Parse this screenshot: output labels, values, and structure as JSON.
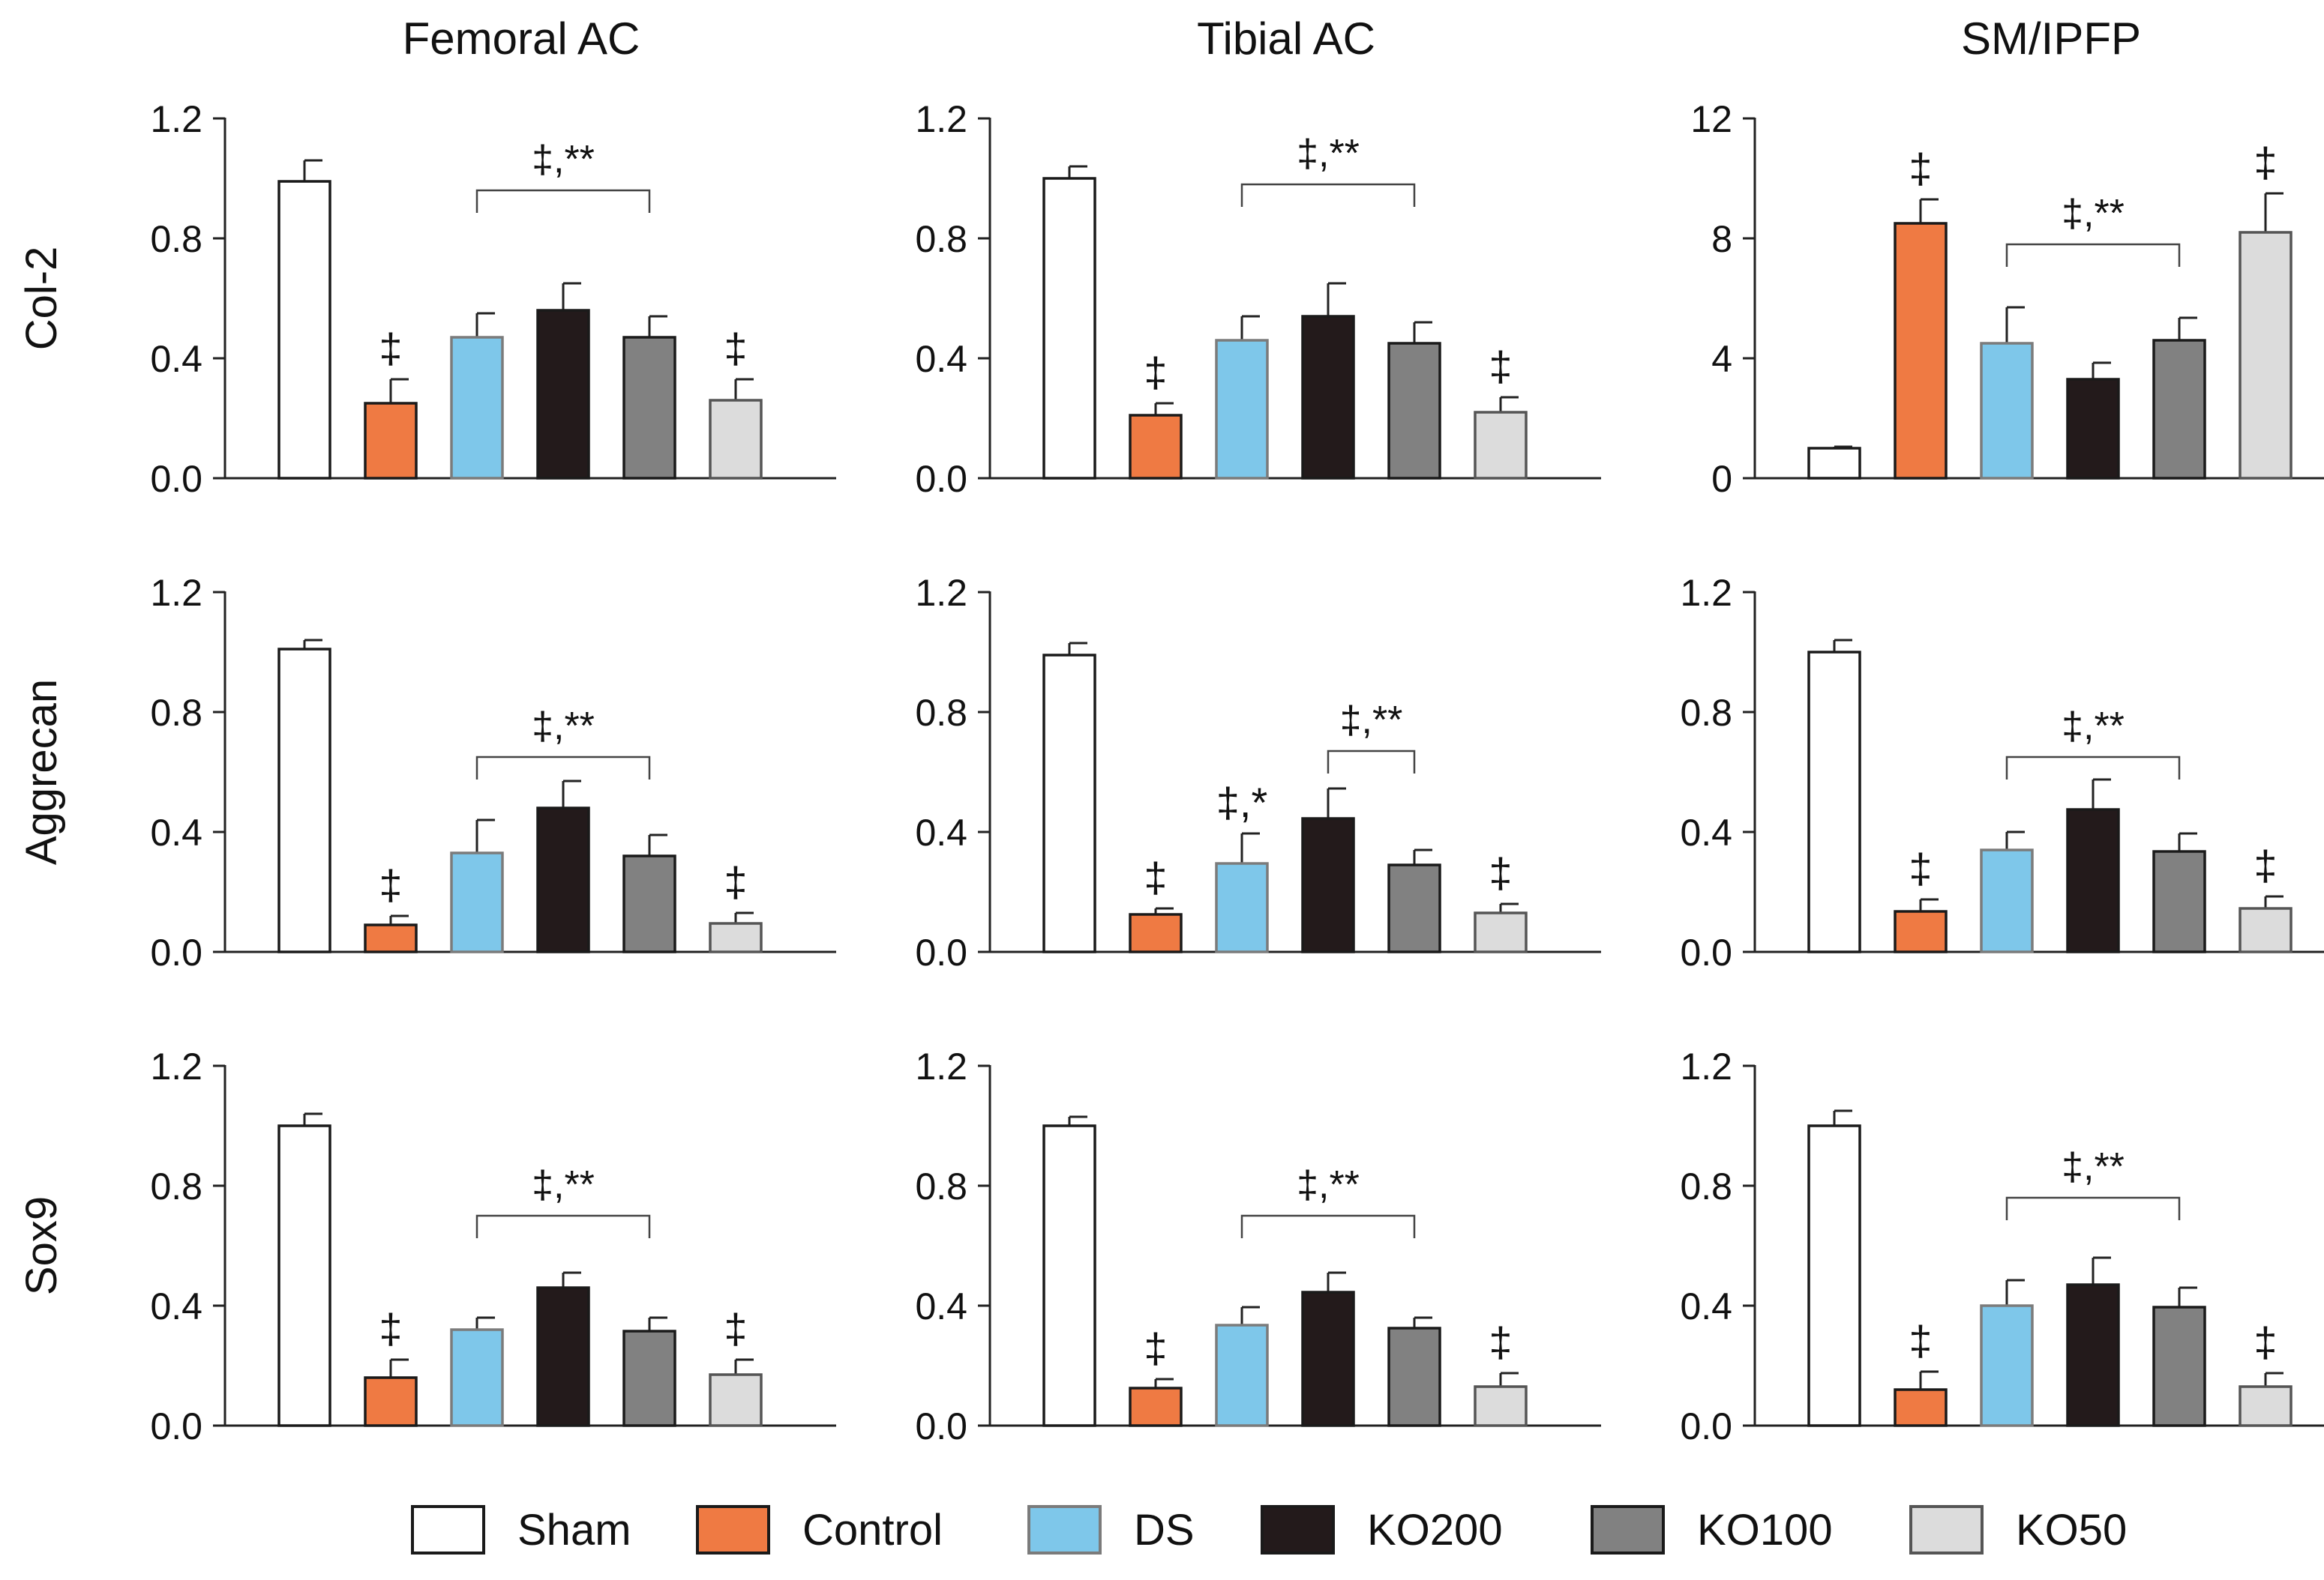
{
  "colors": {
    "Sham": "#ffffff",
    "Control": "#ef7a43",
    "DS": "#7ec7ea",
    "KO200": "#231a1b",
    "KO100": "#818181",
    "KO50": "#dcdcdc",
    "DS_border": "#7b7b7b",
    "KO50_border": "#555555"
  },
  "legend": [
    "Sham",
    "Control",
    "DS",
    "KO200",
    "KO100",
    "KO50"
  ],
  "chart_data": [
    {
      "type": "bar",
      "column": "Femoral AC",
      "row": "Col-2",
      "categories": [
        "Sham",
        "Control",
        "DS",
        "KO200",
        "KO100",
        "KO50"
      ],
      "values": [
        0.99,
        0.25,
        0.47,
        0.56,
        0.47,
        0.26
      ],
      "errors": [
        0.07,
        0.08,
        0.08,
        0.09,
        0.07,
        0.07
      ],
      "ylim": [
        0,
        1.2
      ],
      "yticks": [
        "0.0",
        "0.4",
        "0.8",
        "1.2"
      ],
      "markers": [
        {
          "bar": "Control",
          "text": "‡"
        },
        {
          "bar": "KO50",
          "text": "‡"
        }
      ],
      "bracket": {
        "from": "DS",
        "to": "KO100",
        "text": "‡,**",
        "level": 0.96
      }
    },
    {
      "type": "bar",
      "column": "Tibial AC",
      "row": "Col-2",
      "categories": [
        "Sham",
        "Control",
        "DS",
        "KO200",
        "KO100",
        "KO50"
      ],
      "values": [
        1.0,
        0.21,
        0.46,
        0.54,
        0.45,
        0.22
      ],
      "errors": [
        0.04,
        0.04,
        0.08,
        0.11,
        0.07,
        0.05
      ],
      "ylim": [
        0,
        1.2
      ],
      "yticks": [
        "0.0",
        "0.4",
        "0.8",
        "1.2"
      ],
      "markers": [
        {
          "bar": "Control",
          "text": "‡"
        },
        {
          "bar": "KO50",
          "text": "‡"
        }
      ],
      "bracket": {
        "from": "DS",
        "to": "KO100",
        "text": "‡,**",
        "level": 0.98
      }
    },
    {
      "type": "bar",
      "column": "SM/IPFP",
      "row": "Col-2",
      "categories": [
        "Sham",
        "Control",
        "DS",
        "KO200",
        "KO100",
        "KO50"
      ],
      "values": [
        1.0,
        8.5,
        4.5,
        3.3,
        4.6,
        8.2
      ],
      "errors": [
        0.05,
        0.8,
        1.2,
        0.55,
        0.75,
        1.3
      ],
      "ylim": [
        0,
        12
      ],
      "yticks": [
        "0",
        "4",
        "8",
        "12"
      ],
      "markers": [
        {
          "bar": "Control",
          "text": "‡"
        },
        {
          "bar": "KO50",
          "text": "‡"
        }
      ],
      "bracket": {
        "from": "DS",
        "to": "KO100",
        "text": "‡,**",
        "level": 7.8
      }
    },
    {
      "type": "bar",
      "column": "Femoral AC",
      "row": "Aggrecan",
      "categories": [
        "Sham",
        "Control",
        "DS",
        "KO200",
        "KO100",
        "KO50"
      ],
      "values": [
        1.01,
        0.09,
        0.33,
        0.48,
        0.32,
        0.095
      ],
      "errors": [
        0.03,
        0.03,
        0.11,
        0.09,
        0.07,
        0.035
      ],
      "ylim": [
        0,
        1.2
      ],
      "yticks": [
        "0.0",
        "0.4",
        "0.8",
        "1.2"
      ],
      "markers": [
        {
          "bar": "Control",
          "text": "‡"
        },
        {
          "bar": "KO50",
          "text": "‡"
        }
      ],
      "bracket": {
        "from": "DS",
        "to": "KO100",
        "text": "‡,**",
        "level": 0.65
      }
    },
    {
      "type": "bar",
      "column": "Tibial AC",
      "row": "Aggrecan",
      "categories": [
        "Sham",
        "Control",
        "DS",
        "KO200",
        "KO100",
        "KO50"
      ],
      "values": [
        0.99,
        0.125,
        0.295,
        0.445,
        0.29,
        0.13
      ],
      "errors": [
        0.04,
        0.02,
        0.1,
        0.1,
        0.05,
        0.03
      ],
      "ylim": [
        0,
        1.2
      ],
      "yticks": [
        "0.0",
        "0.4",
        "0.8",
        "1.2"
      ],
      "markers": [
        {
          "bar": "Control",
          "text": "‡"
        },
        {
          "bar": "DS",
          "text": "‡,*"
        },
        {
          "bar": "KO50",
          "text": "‡"
        }
      ],
      "bracket": {
        "from": "KO200",
        "to": "KO100",
        "text": "‡,**",
        "level": 0.67
      }
    },
    {
      "type": "bar",
      "column": "SM/IPFP",
      "row": "Aggrecan",
      "categories": [
        "Sham",
        "Control",
        "DS",
        "KO200",
        "KO100",
        "KO50"
      ],
      "values": [
        1.0,
        0.135,
        0.34,
        0.475,
        0.335,
        0.145
      ],
      "errors": [
        0.04,
        0.04,
        0.06,
        0.1,
        0.06,
        0.04
      ],
      "ylim": [
        0,
        1.2
      ],
      "yticks": [
        "0.0",
        "0.4",
        "0.8",
        "1.2"
      ],
      "markers": [
        {
          "bar": "Control",
          "text": "‡"
        },
        {
          "bar": "KO50",
          "text": "‡"
        }
      ],
      "bracket": {
        "from": "DS",
        "to": "KO100",
        "text": "‡,**",
        "level": 0.65
      }
    },
    {
      "type": "bar",
      "column": "Femoral AC",
      "row": "Sox9",
      "categories": [
        "Sham",
        "Control",
        "DS",
        "KO200",
        "KO100",
        "KO50"
      ],
      "values": [
        1.0,
        0.16,
        0.32,
        0.46,
        0.315,
        0.17
      ],
      "errors": [
        0.04,
        0.06,
        0.04,
        0.05,
        0.045,
        0.05
      ],
      "ylim": [
        0,
        1.2
      ],
      "yticks": [
        "0.0",
        "0.4",
        "0.8",
        "1.2"
      ],
      "markers": [
        {
          "bar": "Control",
          "text": "‡"
        },
        {
          "bar": "KO50",
          "text": "‡"
        }
      ],
      "bracket": {
        "from": "DS",
        "to": "KO100",
        "text": "‡,**",
        "level": 0.7
      }
    },
    {
      "type": "bar",
      "column": "Tibial AC",
      "row": "Sox9",
      "categories": [
        "Sham",
        "Control",
        "DS",
        "KO200",
        "KO100",
        "KO50"
      ],
      "values": [
        1.0,
        0.125,
        0.335,
        0.445,
        0.325,
        0.13
      ],
      "errors": [
        0.03,
        0.03,
        0.06,
        0.065,
        0.035,
        0.045
      ],
      "ylim": [
        0,
        1.2
      ],
      "yticks": [
        "0.0",
        "0.4",
        "0.8",
        "1.2"
      ],
      "markers": [
        {
          "bar": "Control",
          "text": "‡"
        },
        {
          "bar": "KO50",
          "text": "‡"
        }
      ],
      "bracket": {
        "from": "DS",
        "to": "KO100",
        "text": "‡,**",
        "level": 0.7
      }
    },
    {
      "type": "bar",
      "column": "SM/IPFP",
      "row": "Sox9",
      "categories": [
        "Sham",
        "Control",
        "DS",
        "KO200",
        "KO100",
        "KO50"
      ],
      "values": [
        1.0,
        0.12,
        0.4,
        0.47,
        0.395,
        0.13
      ],
      "errors": [
        0.05,
        0.06,
        0.085,
        0.09,
        0.065,
        0.045
      ],
      "ylim": [
        0,
        1.2
      ],
      "yticks": [
        "0.0",
        "0.4",
        "0.8",
        "1.2"
      ],
      "markers": [
        {
          "bar": "Control",
          "text": "‡"
        },
        {
          "bar": "KO50",
          "text": "‡"
        }
      ],
      "bracket": {
        "from": "DS",
        "to": "KO100",
        "text": "‡,**",
        "level": 0.76
      }
    }
  ]
}
